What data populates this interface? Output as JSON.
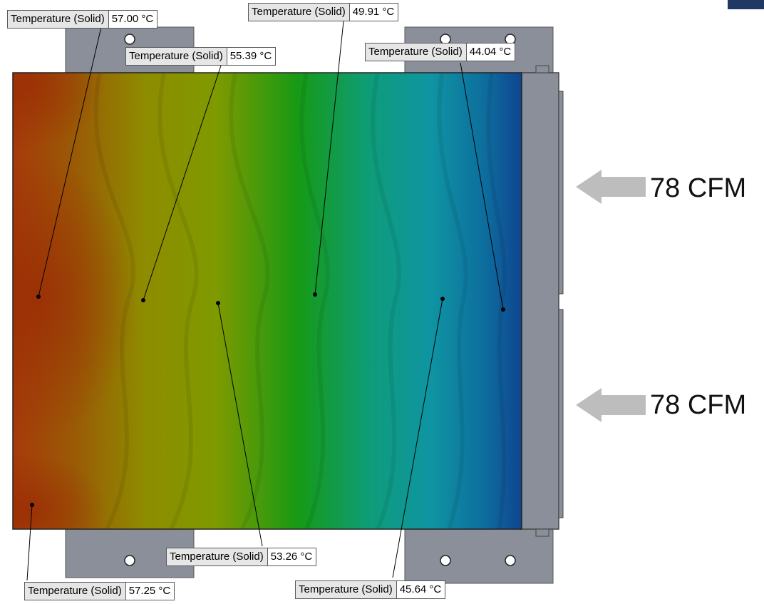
{
  "simulation": {
    "probes": [
      {
        "id": "p1",
        "name": "Temperature (Solid)",
        "value": "57.00 °C"
      },
      {
        "id": "p2",
        "name": "Temperature (Solid)",
        "value": "55.39 °C"
      },
      {
        "id": "p3",
        "name": "Temperature (Solid)",
        "value": "49.91 °C"
      },
      {
        "id": "p4",
        "name": "Temperature (Solid)",
        "value": "44.04 °C"
      },
      {
        "id": "p5",
        "name": "Temperature (Solid)",
        "value": "53.26 °C"
      },
      {
        "id": "p6",
        "name": "Temperature (Solid)",
        "value": "57.25 °C"
      },
      {
        "id": "p7",
        "name": "Temperature (Solid)",
        "value": "45.64 °C"
      }
    ],
    "airflow": [
      {
        "label": "78 CFM"
      },
      {
        "label": "78 CFM"
      }
    ],
    "colors": {
      "hot": "#a83a0c",
      "warm": "#8c8c00",
      "mid": "#0e9a10",
      "cool": "#0e9c9c",
      "cold": "#0f4a96",
      "housing": "#8a8f9a",
      "arrow": "#bdbdbd"
    }
  }
}
